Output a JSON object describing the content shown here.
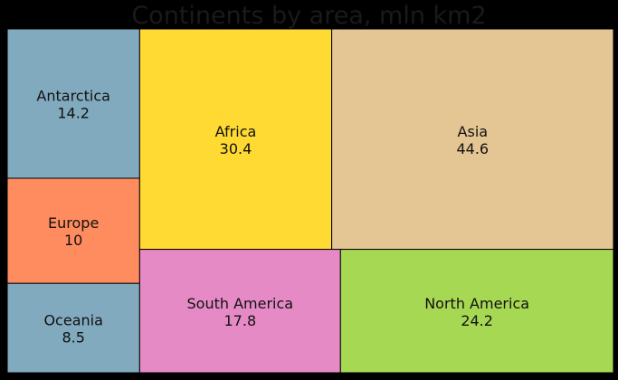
{
  "chart_data": {
    "type": "treemap",
    "title": "Continents by area, mln km2",
    "items": [
      {
        "label": "Antarctica",
        "value": 14.2,
        "value_label": "14.2",
        "color": "#82AABE"
      },
      {
        "label": "Africa",
        "value": 30.4,
        "value_label": "30.4",
        "color": "#FFDA33"
      },
      {
        "label": "Asia",
        "value": 44.6,
        "value_label": "44.6",
        "color": "#E4C594"
      },
      {
        "label": "Europe",
        "value": 10,
        "value_label": "10",
        "color": "#FF8C5F"
      },
      {
        "label": "Oceania",
        "value": 8.5,
        "value_label": "8.5",
        "color": "#82AABE"
      },
      {
        "label": "South America",
        "value": 17.8,
        "value_label": "17.8",
        "color": "#E68AC6"
      },
      {
        "label": "North America",
        "value": 24.2,
        "value_label": "24.2",
        "color": "#A6D854"
      }
    ]
  }
}
